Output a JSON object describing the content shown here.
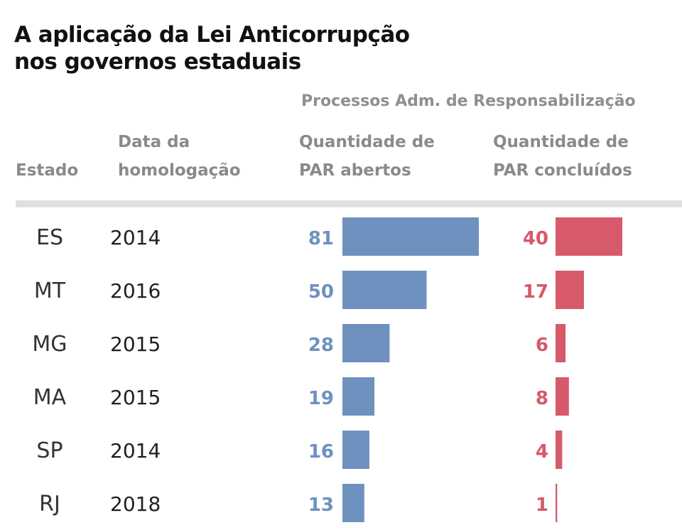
{
  "title_lines": [
    "A aplicação da Lei Anticorrupção",
    "nos governos estaduais"
  ],
  "group_label": "Processos Adm. de Responsabilização",
  "headers": {
    "estado": "Estado",
    "data_line1": "Data da",
    "data_line2": "homologação",
    "abertos_line1": "Quantidade de",
    "abertos_line2": "PAR abertos",
    "concluidos_line1": "Quantidade de",
    "concluidos_line2": "PAR concluídos"
  },
  "colors": {
    "abertos": "#6f91bf",
    "concluidos": "#d65a6a"
  },
  "chart_data": {
    "type": "bar",
    "title": "A aplicação da Lei Anticorrupção nos governos estaduais",
    "categories": [
      "ES",
      "MT",
      "MG",
      "MA",
      "SP",
      "RJ"
    ],
    "homologacao": [
      "2014",
      "2016",
      "2015",
      "2015",
      "2014",
      "2018"
    ],
    "series": [
      {
        "name": "Quantidade de PAR abertos",
        "values": [
          81,
          50,
          28,
          19,
          16,
          13
        ]
      },
      {
        "name": "Quantidade de PAR concluídos",
        "values": [
          40,
          17,
          6,
          8,
          4,
          1
        ]
      }
    ],
    "xlabel": "",
    "ylabel": ""
  }
}
